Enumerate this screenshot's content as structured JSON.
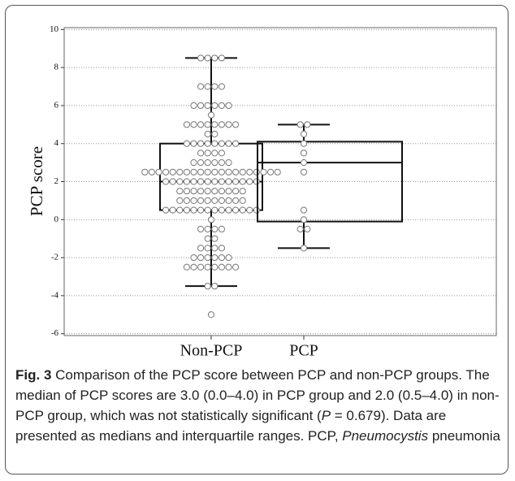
{
  "chart_data": {
    "type": "box",
    "ylabel": "PCP score",
    "ylim": [
      -6.1,
      10.1
    ],
    "yticks": [
      -6,
      -4,
      -2,
      0,
      2,
      4,
      6,
      8,
      10
    ],
    "grid": true,
    "groups": [
      {
        "name": "Non-PCP",
        "whisker_low": -3.5,
        "q1": 0.5,
        "median": 2.0,
        "q3": 4.0,
        "whisker_high": 8.5,
        "points": [
          8.5,
          8.5,
          8.5,
          8.5,
          7,
          7,
          7,
          7,
          6,
          6,
          6,
          6,
          6,
          6,
          5.5,
          5,
          5,
          5,
          5,
          5,
          5,
          5,
          5,
          4.5,
          4.5,
          4,
          4,
          4,
          4,
          4,
          4,
          4,
          4,
          3.5,
          3.5,
          3.5,
          3.5,
          3,
          3,
          3,
          3,
          3,
          3,
          2.5,
          2.5,
          2.5,
          2.5,
          2.5,
          2.5,
          2.5,
          2.5,
          2.5,
          2.5,
          2.5,
          2.5,
          2.5,
          2.5,
          2.5,
          2.5,
          2.5,
          2.5,
          2.5,
          2.5,
          2,
          2,
          2,
          2,
          2,
          2,
          2,
          2,
          2,
          2,
          2,
          2,
          2,
          2,
          1.5,
          1.5,
          1.5,
          1.5,
          1.5,
          1.5,
          1.5,
          1.5,
          1.5,
          1.5,
          1,
          1,
          1,
          1,
          1,
          1,
          1,
          1,
          1,
          1,
          0.5,
          0.5,
          0.5,
          0.5,
          0.5,
          0.5,
          0.5,
          0.5,
          0.5,
          0.5,
          0.5,
          0.5,
          0.5,
          0.5,
          0,
          -0.5,
          -0.5,
          -0.5,
          -0.5,
          -1,
          -1,
          -1.5,
          -1.5,
          -1.5,
          -1.5,
          -2,
          -2,
          -2,
          -2,
          -2,
          -2,
          -2.5,
          -2.5,
          -2.5,
          -2.5,
          -2.5,
          -2.5,
          -2.5,
          -2.5,
          -3.5,
          -3.5,
          -5
        ]
      },
      {
        "name": "PCP",
        "whisker_low": -1.5,
        "q1": -0.1,
        "median": 3.0,
        "q3": 4.1,
        "whisker_high": 5.0,
        "points": [
          5,
          5,
          4.5,
          4,
          3.5,
          3,
          2.5,
          0.5,
          0,
          -0.5,
          -0.5,
          -1.5
        ]
      }
    ]
  },
  "caption": {
    "parts": [
      "Fig. 3",
      " Comparison of the PCP score between PCP and non-PCP groups. The median of PCP scores are 3.0 (0.0–4.0) in PCP group and 2.0 (0.5–4.0) in non-PCP group, which was not statistically significant (",
      "P",
      " = 0.679). Data are presented as medians and interquartile ranges. PCP, ",
      "Pneumocystis",
      " pneumonia"
    ]
  }
}
